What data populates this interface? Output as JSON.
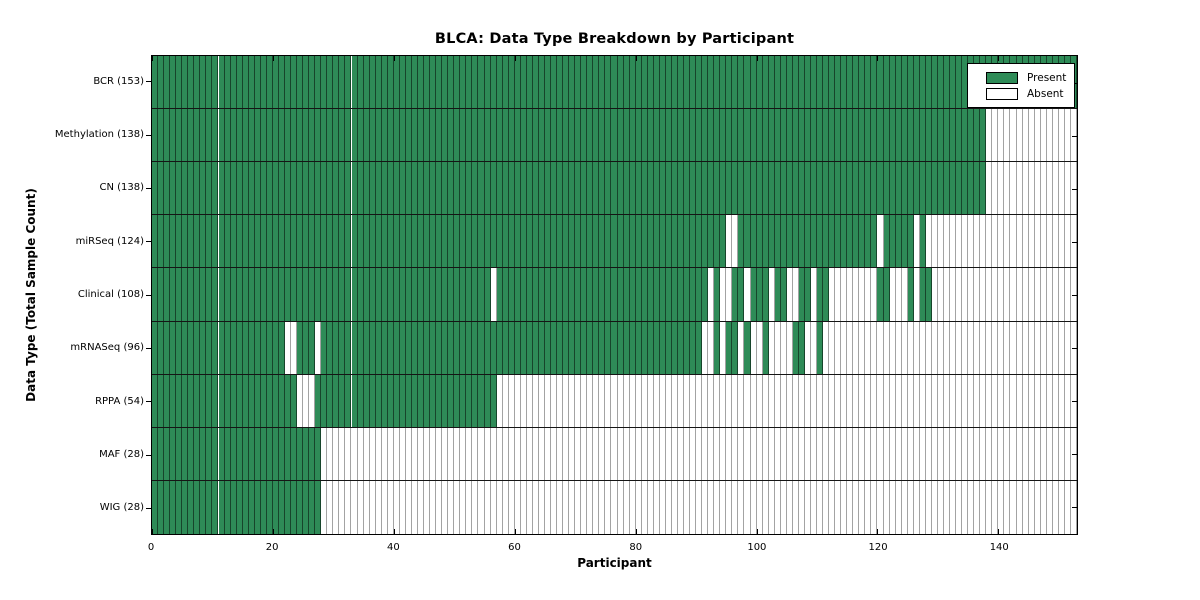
{
  "title": "BLCA: Data Type Breakdown by Participant",
  "x_axis_label": "Participant",
  "y_axis_label": "Data Type (Total Sample Count)",
  "legend": {
    "present_label": "Present",
    "absent_label": "Absent"
  },
  "colors": {
    "present": "#2E8B57",
    "absent": "#FFFFFF",
    "cell_border_on_present": "rgba(0,0,0,0.5)",
    "cell_border_on_absent": "#A3A3A3",
    "row_divider": "#151515",
    "spine": "#000000"
  },
  "chart_data": {
    "type": "heatmap",
    "title": "BLCA: Data Type Breakdown by Participant",
    "xlabel": "Participant",
    "ylabel": "Data Type (Total Sample Count)",
    "x_ticks": [
      0,
      20,
      40,
      60,
      80,
      100,
      120,
      140
    ],
    "x_range": [
      0,
      153
    ],
    "n_participants": 153,
    "grid": false,
    "legend_entries": [
      "Present",
      "Absent"
    ],
    "legend_position": "upper-right",
    "cell_states": [
      "present",
      "absent"
    ],
    "rows": [
      {
        "label": "BCR (153)",
        "data_type": "BCR",
        "total_samples": 153,
        "present_ranges": [
          [
            0,
            152
          ]
        ]
      },
      {
        "label": "Methylation (138)",
        "data_type": "Methylation",
        "total_samples": 138,
        "present_ranges": [
          [
            0,
            137
          ]
        ]
      },
      {
        "label": "CN (138)",
        "data_type": "CN",
        "total_samples": 138,
        "present_ranges": [
          [
            0,
            137
          ]
        ]
      },
      {
        "label": "miRSeq (124)",
        "data_type": "miRSeq",
        "total_samples": 124,
        "present_ranges": [
          [
            0,
            94
          ],
          [
            97,
            119
          ],
          [
            121,
            125
          ],
          [
            127,
            127
          ]
        ]
      },
      {
        "label": "Clinical (108)",
        "data_type": "Clinical",
        "total_samples": 108,
        "present_ranges": [
          [
            0,
            55
          ],
          [
            57,
            91
          ],
          [
            93,
            93
          ],
          [
            96,
            97
          ],
          [
            99,
            101
          ],
          [
            103,
            104
          ],
          [
            107,
            108
          ],
          [
            110,
            111
          ],
          [
            120,
            121
          ],
          [
            125,
            125
          ],
          [
            127,
            128
          ]
        ]
      },
      {
        "label": "mRNASeq (96)",
        "data_type": "mRNASeq",
        "total_samples": 96,
        "present_ranges": [
          [
            0,
            21
          ],
          [
            24,
            26
          ],
          [
            28,
            90
          ],
          [
            93,
            93
          ],
          [
            95,
            96
          ],
          [
            98,
            98
          ],
          [
            101,
            101
          ],
          [
            106,
            107
          ],
          [
            110,
            110
          ]
        ]
      },
      {
        "label": "RPPA (54)",
        "data_type": "RPPA",
        "total_samples": 54,
        "present_ranges": [
          [
            0,
            23
          ],
          [
            27,
            56
          ]
        ]
      },
      {
        "label": "MAF (28)",
        "data_type": "MAF",
        "total_samples": 28,
        "present_ranges": [
          [
            0,
            27
          ]
        ]
      },
      {
        "label": "WIG (28)",
        "data_type": "WIG",
        "total_samples": 28,
        "present_ranges": [
          [
            0,
            27
          ]
        ]
      }
    ]
  }
}
